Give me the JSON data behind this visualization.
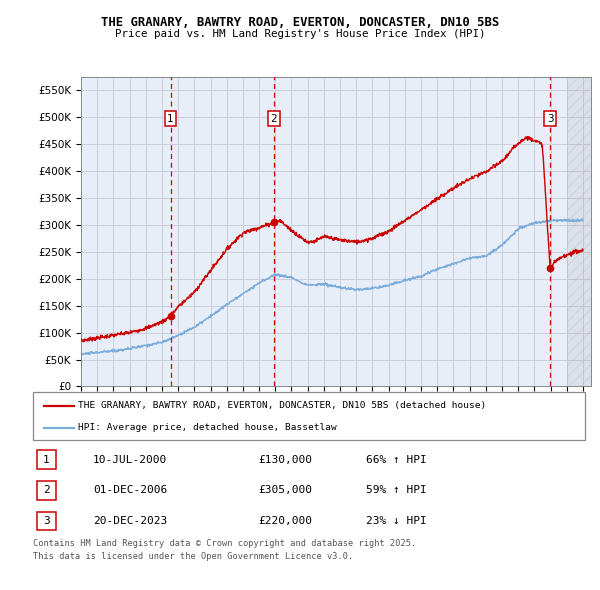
{
  "title1": "THE GRANARY, BAWTRY ROAD, EVERTON, DONCASTER, DN10 5BS",
  "title2": "Price paid vs. HM Land Registry's House Price Index (HPI)",
  "yticks": [
    0,
    50000,
    100000,
    150000,
    200000,
    250000,
    300000,
    350000,
    400000,
    450000,
    500000,
    550000
  ],
  "ytick_labels": [
    "£0",
    "£50K",
    "£100K",
    "£150K",
    "£200K",
    "£250K",
    "£300K",
    "£350K",
    "£400K",
    "£450K",
    "£500K",
    "£550K"
  ],
  "xlim_start": 1995.0,
  "xlim_end": 2026.5,
  "ylim_min": 0,
  "ylim_max": 575000,
  "hpi_color": "#7aaddc",
  "price_color": "#cc0000",
  "grid_color": "#ccccdd",
  "background_color": "#e8eef8",
  "transactions": [
    {
      "id": 1,
      "date_x": 2000.53,
      "price": 130000
    },
    {
      "id": 2,
      "date_x": 2006.92,
      "price": 305000
    },
    {
      "id": 3,
      "date_x": 2023.97,
      "price": 220000
    }
  ],
  "legend_line1": "THE GRANARY, BAWTRY ROAD, EVERTON, DONCASTER, DN10 5BS (detached house)",
  "legend_line2": "HPI: Average price, detached house, Bassetlaw",
  "footer1": "Contains HM Land Registry data © Crown copyright and database right 2025.",
  "footer2": "This data is licensed under the Open Government Licence v3.0.",
  "table_rows": [
    {
      "id": "1",
      "date": "10-JUL-2000",
      "price": "£130,000",
      "pct": "66% ↑ HPI"
    },
    {
      "id": "2",
      "date": "01-DEC-2006",
      "price": "£305,000",
      "pct": "59% ↑ HPI"
    },
    {
      "id": "3",
      "date": "20-DEC-2023",
      "price": "£220,000",
      "pct": "23% ↓ HPI"
    }
  ]
}
